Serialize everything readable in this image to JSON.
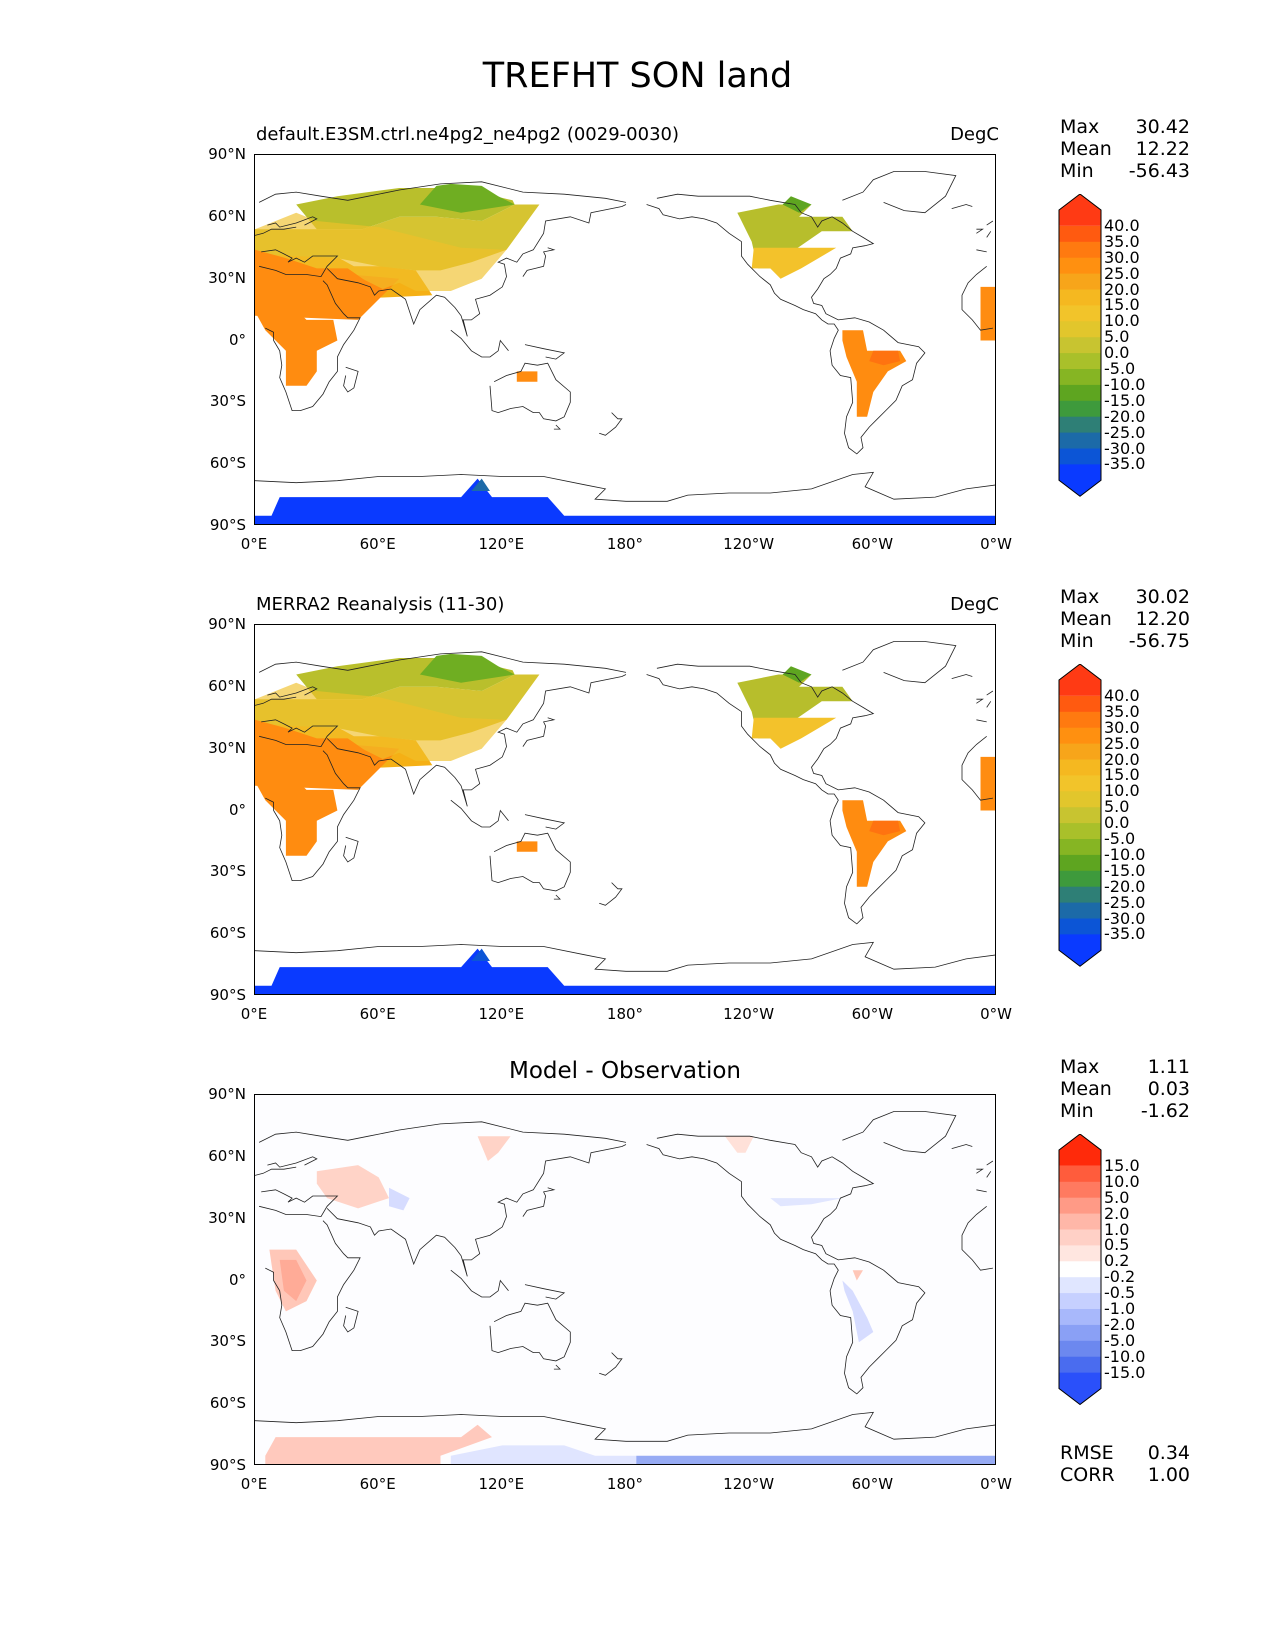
{
  "figure": {
    "title": "TREFHT SON land"
  },
  "axes": {
    "yticks": [
      "90°N",
      "60°N",
      "30°N",
      "0°",
      "30°S",
      "60°S",
      "90°S"
    ],
    "xticks": [
      "0°E",
      "60°E",
      "120°E",
      "180°",
      "120°W",
      "60°W",
      "0°W"
    ]
  },
  "panels": [
    {
      "title_left": "default.E3SM.ctrl.ne4pg2_ne4pg2 (0029-0030)",
      "title_right": "DegC",
      "stats": {
        "max_label": "Max",
        "max": "30.42",
        "mean_label": "Mean",
        "mean": "12.22",
        "min_label": "Min",
        "min": "-56.43"
      }
    },
    {
      "title_left": "MERRA2 Reanalysis (11-30)",
      "title_right": "DegC",
      "stats": {
        "max_label": "Max",
        "max": "30.02",
        "mean_label": "Mean",
        "mean": "12.20",
        "min_label": "Min",
        "min": "-56.75"
      }
    },
    {
      "title_center": "Model - Observation",
      "stats": {
        "max_label": "Max",
        "max": "1.11",
        "mean_label": "Mean",
        "mean": "0.03",
        "min_label": "Min",
        "min": "-1.62"
      },
      "metrics": {
        "rmse_label": "RMSE",
        "rmse": "0.34",
        "corr_label": "CORR",
        "corr": "1.00"
      }
    }
  ],
  "colorbar_temperature": {
    "labels": [
      "40.0",
      "35.0",
      "30.0",
      "25.0",
      "20.0",
      "15.0",
      "10.0",
      "5.0",
      "0.0",
      "-5.0",
      "-10.0",
      "-15.0",
      "-20.0",
      "-25.0",
      "-30.0",
      "-35.0"
    ],
    "colors": [
      "#ff3a14",
      "#ff5a10",
      "#ff7a10",
      "#ff9010",
      "#f7a51a",
      "#f5b820",
      "#f2c42a",
      "#e2c62c",
      "#c8c430",
      "#a9c02a",
      "#86b523",
      "#5ea520",
      "#3e9a3c",
      "#2e7f76",
      "#1c6aa8",
      "#0c55d6",
      "#0a3aff"
    ]
  },
  "colorbar_difference": {
    "labels": [
      "15.0",
      "10.0",
      "5.0",
      "2.0",
      "1.0",
      "0.5",
      "0.2",
      "-0.2",
      "-0.5",
      "-1.0",
      "-2.0",
      "-5.0",
      "-10.0",
      "-15.0"
    ],
    "colors": [
      "#ff2a0a",
      "#ff5c3c",
      "#ff7a60",
      "#ff9a86",
      "#ffb7a8",
      "#ffd0c6",
      "#ffe6e0",
      "#ffffff",
      "#e0e6ff",
      "#c6d0ff",
      "#a8b8fb",
      "#8aa0f5",
      "#6c88ef",
      "#4a6cef",
      "#2a50fa"
    ]
  }
}
